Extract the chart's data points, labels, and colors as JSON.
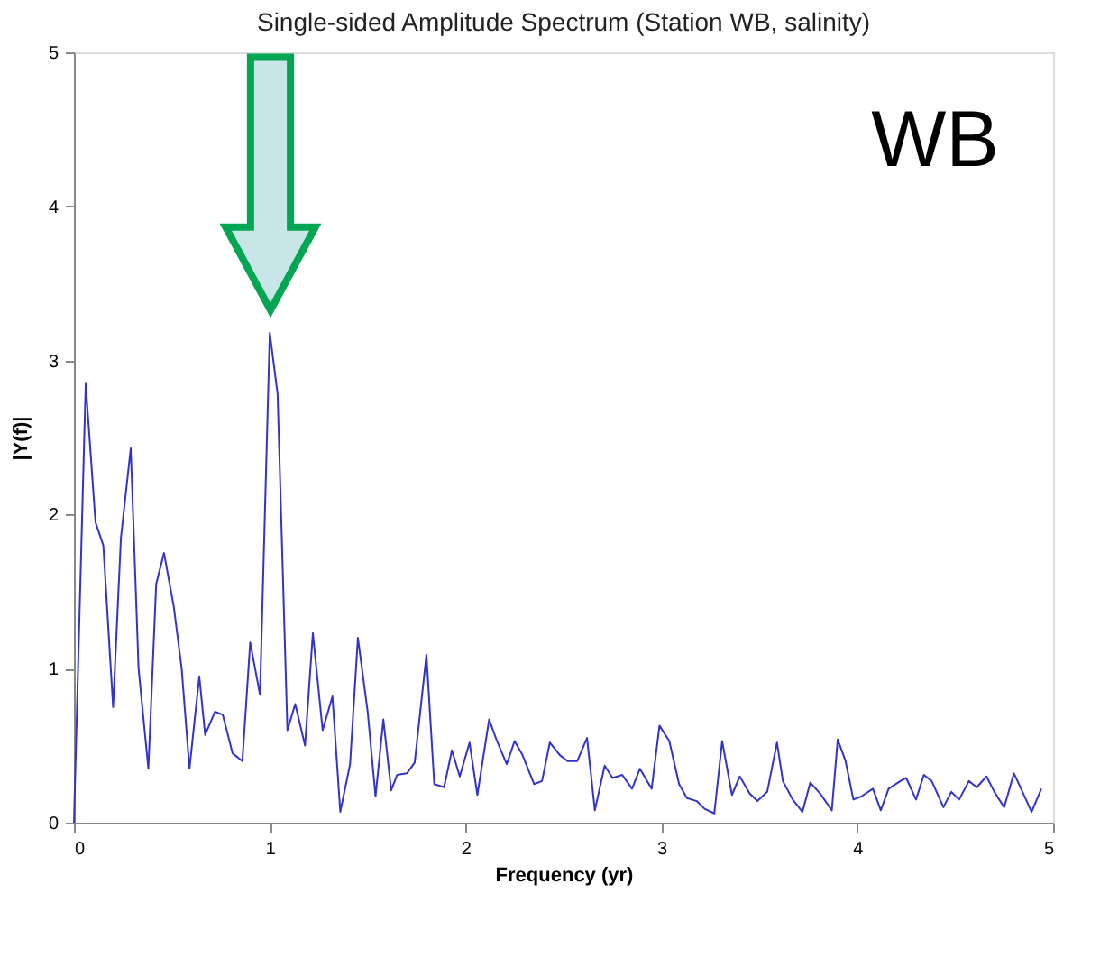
{
  "chart_data": {
    "type": "line",
    "title": "Single-sided Amplitude Spectrum (Station WB, salinity)",
    "xlabel": "Frequency (yr)",
    "ylabel": "|Y(f)|",
    "annotations": [
      "WB"
    ],
    "xlim": [
      0,
      5
    ],
    "ylim": [
      0,
      5
    ],
    "xticks": [
      0,
      1,
      2,
      3,
      4,
      5
    ],
    "yticks": [
      0,
      1,
      2,
      3,
      4,
      5
    ],
    "grid": false,
    "marker": "none",
    "line_style": "solid",
    "series": [
      {
        "color": "#3333cc",
        "x": [
          0,
          0.06,
          0.11,
          0.15,
          0.2,
          0.24,
          0.29,
          0.33,
          0.38,
          0.42,
          0.46,
          0.51,
          0.55,
          0.59,
          0.64,
          0.67,
          0.72,
          0.76,
          0.81,
          0.86,
          0.9,
          0.95,
          1.0,
          1.04,
          1.09,
          1.13,
          1.18,
          1.22,
          1.27,
          1.32,
          1.36,
          1.41,
          1.45,
          1.5,
          1.54,
          1.58,
          1.62,
          1.65,
          1.7,
          1.74,
          1.8,
          1.84,
          1.89,
          1.93,
          1.97,
          2.02,
          2.06,
          2.12,
          2.16,
          2.21,
          2.25,
          2.29,
          2.35,
          2.39,
          2.43,
          2.48,
          2.52,
          2.57,
          2.62,
          2.66,
          2.71,
          2.75,
          2.8,
          2.85,
          2.89,
          2.95,
          2.99,
          3.04,
          3.09,
          3.13,
          3.18,
          3.22,
          3.27,
          3.31,
          3.36,
          3.4,
          3.45,
          3.49,
          3.54,
          3.59,
          3.62,
          3.67,
          3.72,
          3.76,
          3.81,
          3.87,
          3.9,
          3.94,
          3.98,
          4.02,
          4.08,
          4.12,
          4.16,
          4.22,
          4.25,
          4.3,
          4.34,
          4.38,
          4.44,
          4.48,
          4.52,
          4.57,
          4.61,
          4.66,
          4.7,
          4.75,
          4.8,
          4.84,
          4.89,
          4.94
        ],
        "values": [
          0,
          2.85,
          1.95,
          1.8,
          0.75,
          1.85,
          2.43,
          1.0,
          0.35,
          1.55,
          1.75,
          1.4,
          1.0,
          0.35,
          0.95,
          0.57,
          0.72,
          0.7,
          0.45,
          0.4,
          1.17,
          0.83,
          3.18,
          2.78,
          0.6,
          0.77,
          0.5,
          1.23,
          0.6,
          0.82,
          0.07,
          0.38,
          1.2,
          0.72,
          0.17,
          0.67,
          0.21,
          0.31,
          0.32,
          0.39,
          1.09,
          0.25,
          0.23,
          0.47,
          0.3,
          0.52,
          0.18,
          0.67,
          0.53,
          0.38,
          0.53,
          0.44,
          0.25,
          0.27,
          0.52,
          0.44,
          0.4,
          0.4,
          0.55,
          0.08,
          0.37,
          0.29,
          0.31,
          0.22,
          0.35,
          0.22,
          0.63,
          0.53,
          0.25,
          0.16,
          0.14,
          0.09,
          0.06,
          0.53,
          0.18,
          0.3,
          0.19,
          0.14,
          0.2,
          0.52,
          0.27,
          0.15,
          0.07,
          0.26,
          0.19,
          0.08,
          0.54,
          0.4,
          0.15,
          0.17,
          0.22,
          0.08,
          0.22,
          0.27,
          0.29,
          0.15,
          0.31,
          0.27,
          0.1,
          0.2,
          0.15,
          0.27,
          0.23,
          0.3,
          0.2,
          0.1,
          0.32,
          0.21,
          0.07,
          0.22
        ]
      }
    ]
  }
}
